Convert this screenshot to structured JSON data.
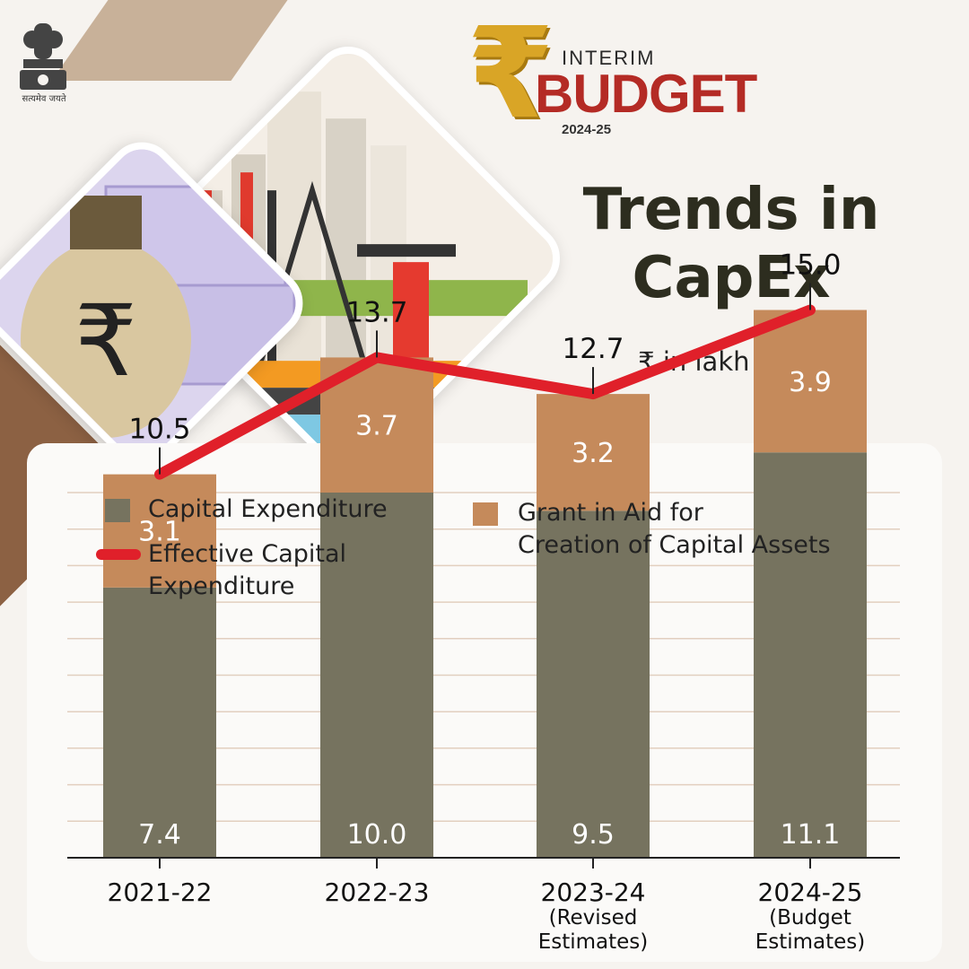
{
  "emblem": {
    "caption": "सत्यमेव जयते"
  },
  "logo": {
    "symbol": "₹",
    "top": "INTERIM",
    "main": "BUDGET",
    "year": "2024-25"
  },
  "heading": {
    "title_line1": "Trends in",
    "title_line2": "CapEx",
    "unit": "₹ in lakh crore"
  },
  "colors": {
    "capex": "#76735f",
    "grant": "#c58a5b",
    "effective": "#e0202a",
    "grid": "#e2cfbf"
  },
  "legend": {
    "capex": "Capital Expenditure",
    "grant_line1": "Grant in Aid for",
    "grant_line2": "Creation of Capital Assets",
    "effective_line1": "Effective Capital",
    "effective_line2": "Expenditure"
  },
  "chart_data": {
    "type": "bar",
    "stacked": true,
    "categories": [
      "2021-22",
      "2022-23",
      "2023-24",
      "2024-25"
    ],
    "category_notes": [
      [],
      [],
      [
        "(Revised",
        "Estimates)"
      ],
      [
        "(Budget",
        "Estimates)"
      ]
    ],
    "series": [
      {
        "name": "Capital Expenditure",
        "type": "bar",
        "values": [
          7.4,
          10.0,
          9.5,
          11.1
        ]
      },
      {
        "name": "Grant in Aid for Creation of Capital Assets",
        "type": "bar",
        "values": [
          3.1,
          3.7,
          3.2,
          3.9
        ]
      },
      {
        "name": "Effective Capital Expenditure",
        "type": "line",
        "values": [
          10.5,
          13.7,
          12.7,
          15.0
        ]
      }
    ],
    "ylim": [
      0,
      21
    ],
    "grid": true,
    "legend_position": "top"
  }
}
